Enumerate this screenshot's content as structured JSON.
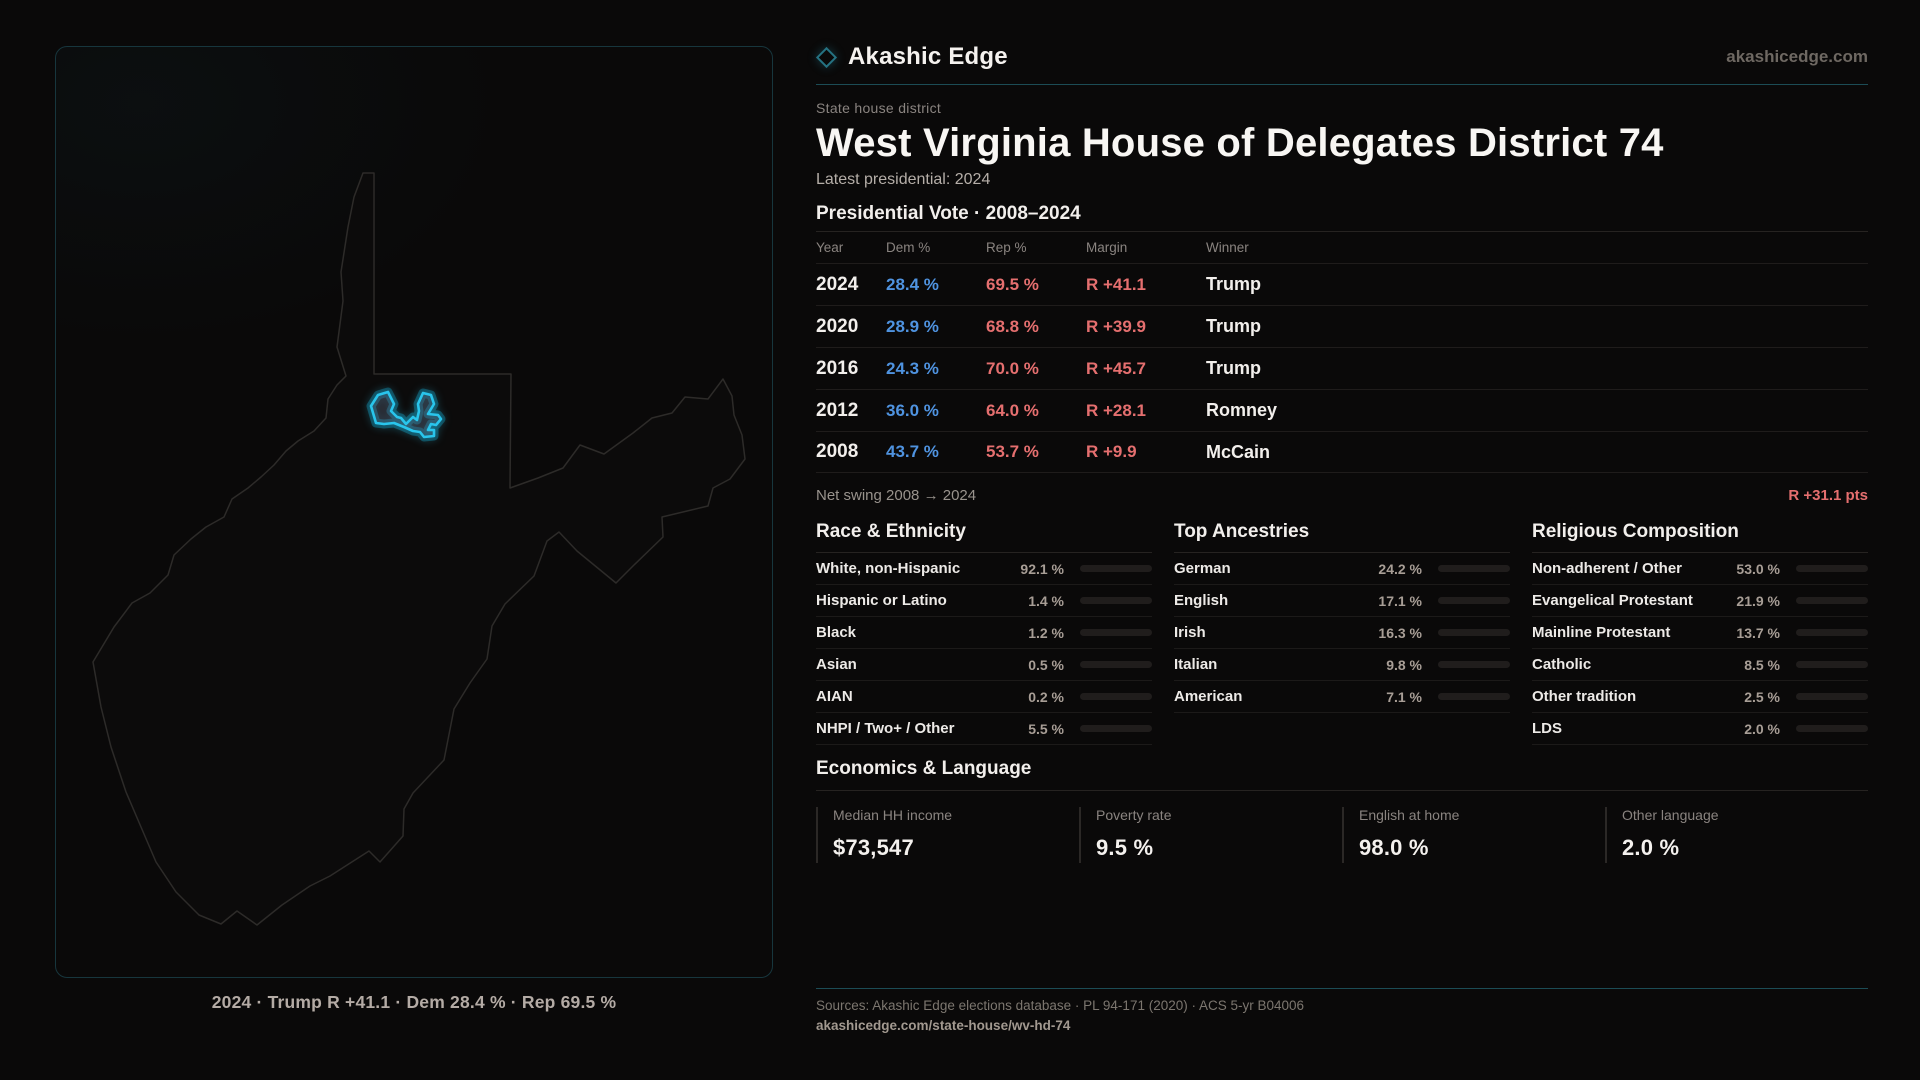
{
  "brand": {
    "logo_text": "Akashic Edge",
    "domain": "akashicedge.com",
    "diamond_icon": "diamond-outline-icon"
  },
  "headline": {
    "eyebrow": "State house district",
    "title": "West Virginia House of Delegates District 74",
    "latest": "Latest presidential: 2024"
  },
  "presidential_table": {
    "title": "Presidential Vote · 2008–2024",
    "columns": {
      "year": "Year",
      "dem": "Dem %",
      "rep": "Rep %",
      "margin": "Margin",
      "winner": "Winner"
    },
    "rows": [
      {
        "year": "2024",
        "dem": "28.4 %",
        "rep": "69.5 %",
        "margin": "R +41.1",
        "winner": "Trump"
      },
      {
        "year": "2020",
        "dem": "28.9 %",
        "rep": "68.8 %",
        "margin": "R +39.9",
        "winner": "Trump"
      },
      {
        "year": "2016",
        "dem": "24.3 %",
        "rep": "70.0 %",
        "margin": "R +45.7",
        "winner": "Trump"
      },
      {
        "year": "2012",
        "dem": "36.0 %",
        "rep": "64.0 %",
        "margin": "R +28.1",
        "winner": "Romney"
      },
      {
        "year": "2008",
        "dem": "43.7 %",
        "rep": "53.7 %",
        "margin": "R +9.9",
        "winner": "McCain"
      }
    ],
    "net_swing_label": "Net swing 2008 → 2024",
    "net_swing_value": "R +31.1 pts"
  },
  "demographics": [
    {
      "title": "Race & Ethnicity",
      "rows": [
        {
          "label": "White, non-Hispanic",
          "value": "92.1 %",
          "pct": 92.1
        },
        {
          "label": "Hispanic or Latino",
          "value": "1.4 %",
          "pct": 1.4
        },
        {
          "label": "Black",
          "value": "1.2 %",
          "pct": 1.2
        },
        {
          "label": "Asian",
          "value": "0.5 %",
          "pct": 0.5
        },
        {
          "label": "AIAN",
          "value": "0.2 %",
          "pct": 0.2
        },
        {
          "label": "NHPI / Two+ / Other",
          "value": "5.5 %",
          "pct": 5.5
        }
      ]
    },
    {
      "title": "Top Ancestries",
      "rows": [
        {
          "label": "German",
          "value": "24.2 %",
          "pct": 24.2
        },
        {
          "label": "English",
          "value": "17.1 %",
          "pct": 17.1
        },
        {
          "label": "Irish",
          "value": "16.3 %",
          "pct": 16.3
        },
        {
          "label": "Italian",
          "value": "9.8 %",
          "pct": 9.8
        },
        {
          "label": "American",
          "value": "7.1 %",
          "pct": 7.1
        }
      ]
    },
    {
      "title": "Religious Composition",
      "rows": [
        {
          "label": "Non-adherent / Other",
          "value": "53.0 %",
          "pct": 53.0
        },
        {
          "label": "Evangelical Protestant",
          "value": "21.9 %",
          "pct": 21.9
        },
        {
          "label": "Mainline Protestant",
          "value": "13.7 %",
          "pct": 13.7
        },
        {
          "label": "Catholic",
          "value": "8.5 %",
          "pct": 8.5
        },
        {
          "label": "Other tradition",
          "value": "2.5 %",
          "pct": 2.5
        },
        {
          "label": "LDS",
          "value": "2.0 %",
          "pct": 2.0
        }
      ]
    }
  ],
  "economics": {
    "title": "Economics & Language",
    "stats": [
      {
        "label": "Median HH income",
        "value": "$73,547"
      },
      {
        "label": "Poverty rate",
        "value": "9.5 %"
      },
      {
        "label": "English at home",
        "value": "98.0 %"
      },
      {
        "label": "Other language",
        "value": "2.0 %"
      }
    ]
  },
  "map": {
    "caption": "2024 · Trump R +41.1 · Dem 28.4 % · Rep 69.5 %",
    "state": "West Virginia",
    "district_outline_icon": "district-highlight-icon"
  },
  "footer": {
    "sources": "Sources: Akashic Edge elections database · PL 94-171 (2020) · ACS 5-yr B04006",
    "permalink": "akashicedge.com/state-house/wv-hd-74"
  },
  "colors": {
    "dem_blue": "#4f93e0",
    "rep_red": "#e56f6f",
    "accent_teal": "#29c5ec",
    "bar_fill": "#d8d4d0",
    "background": "#0a0909"
  },
  "chart_data": [
    {
      "type": "table",
      "title": "Presidential Vote · 2008–2024",
      "columns": [
        "Year",
        "Dem %",
        "Rep %",
        "Margin",
        "Winner"
      ],
      "rows": [
        [
          2024,
          28.4,
          69.5,
          "R +41.1",
          "Trump"
        ],
        [
          2020,
          28.9,
          68.8,
          "R +39.9",
          "Trump"
        ],
        [
          2016,
          24.3,
          70.0,
          "R +45.7",
          "Trump"
        ],
        [
          2012,
          36.0,
          64.0,
          "R +28.1",
          "Romney"
        ],
        [
          2008,
          43.7,
          53.7,
          "R +9.9",
          "McCain"
        ]
      ],
      "annotation": {
        "label": "Net swing 2008 → 2024",
        "value": "R +31.1 pts"
      }
    },
    {
      "type": "bar",
      "title": "Race & Ethnicity",
      "categories": [
        "White, non-Hispanic",
        "Hispanic or Latino",
        "Black",
        "Asian",
        "AIAN",
        "NHPI / Two+ / Other"
      ],
      "values": [
        92.1,
        1.4,
        1.2,
        0.5,
        0.2,
        5.5
      ],
      "xlabel": "",
      "ylabel": "Percent",
      "ylim": [
        0,
        100
      ]
    },
    {
      "type": "bar",
      "title": "Top Ancestries",
      "categories": [
        "German",
        "English",
        "Irish",
        "Italian",
        "American"
      ],
      "values": [
        24.2,
        17.1,
        16.3,
        9.8,
        7.1
      ],
      "xlabel": "",
      "ylabel": "Percent",
      "ylim": [
        0,
        100
      ]
    },
    {
      "type": "bar",
      "title": "Religious Composition",
      "categories": [
        "Non-adherent / Other",
        "Evangelical Protestant",
        "Mainline Protestant",
        "Catholic",
        "Other tradition",
        "LDS"
      ],
      "values": [
        53.0,
        21.9,
        13.7,
        8.5,
        2.5,
        2.0
      ],
      "xlabel": "",
      "ylabel": "Percent",
      "ylim": [
        0,
        100
      ]
    }
  ]
}
